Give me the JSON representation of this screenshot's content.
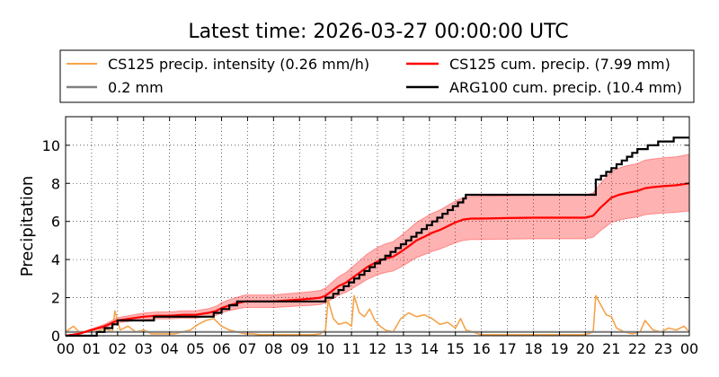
{
  "chart_data": {
    "type": "line",
    "title": "Latest time: 2026-03-27 00:00:00 UTC",
    "ylabel": "Precipitation",
    "xlabel": "",
    "xlim": [
      0,
      24
    ],
    "ylim": [
      0,
      11.5
    ],
    "x_ticks": [
      "00",
      "01",
      "02",
      "03",
      "04",
      "05",
      "06",
      "07",
      "08",
      "09",
      "10",
      "11",
      "12",
      "13",
      "14",
      "15",
      "16",
      "17",
      "18",
      "19",
      "20",
      "21",
      "22",
      "23",
      "00"
    ],
    "y_ticks": [
      0,
      2,
      4,
      6,
      8,
      10
    ],
    "grid": true,
    "legend": {
      "placement": "top",
      "entries": [
        {
          "label": "CS125 precip. intensity (0.26 mm/h)",
          "color": "#f5a34a"
        },
        {
          "label": "CS125 cum. precip. (7.99 mm)",
          "color": "#ff0000"
        },
        {
          "label": "0.2 mm",
          "color": "#808080"
        },
        {
          "label": "ARG100 cum. precip. (10.4 mm)",
          "color": "#000000"
        }
      ]
    },
    "series": [
      {
        "name": "CS125 precip. intensity (0.26 mm/h)",
        "color": "#f5a34a",
        "x": [
          0,
          0.3,
          0.6,
          0.9,
          1.2,
          1.5,
          1.8,
          1.9,
          2.1,
          2.4,
          2.7,
          3.0,
          3.3,
          3.6,
          3.9,
          4.2,
          4.5,
          4.8,
          5.1,
          5.4,
          5.7,
          6.0,
          6.3,
          6.6,
          6.9,
          7.2,
          7.5,
          8,
          8.5,
          9,
          9.5,
          9.8,
          10.0,
          10.1,
          10.3,
          10.5,
          10.8,
          11.0,
          11.1,
          11.3,
          11.5,
          11.7,
          11.9,
          12.1,
          12.3,
          12.6,
          12.9,
          13.2,
          13.5,
          13.8,
          14.1,
          14.4,
          14.7,
          15.0,
          15.2,
          15.4,
          16,
          17,
          18,
          19,
          20,
          20.3,
          20.4,
          20.6,
          20.8,
          21.0,
          21.2,
          21.5,
          21.8,
          22.1,
          22.3,
          22.6,
          22.9,
          23.2,
          23.5,
          23.8,
          24.0
        ],
        "y": [
          0.2,
          0.5,
          0.1,
          0.3,
          0.2,
          0.4,
          0.2,
          1.3,
          0.3,
          0.5,
          0.2,
          0.3,
          0.1,
          0.1,
          0.1,
          0.1,
          0.2,
          0.3,
          0.6,
          0.8,
          0.9,
          0.5,
          0.3,
          0.2,
          0.1,
          0.1,
          0.05,
          0.05,
          0.05,
          0.05,
          0.05,
          0.1,
          0.3,
          1.9,
          0.9,
          0.6,
          0.7,
          0.5,
          2.1,
          1.2,
          1.0,
          1.4,
          0.8,
          0.5,
          0.3,
          0.2,
          0.9,
          1.2,
          1.0,
          1.1,
          0.9,
          0.6,
          0.7,
          0.4,
          0.9,
          0.3,
          0.05,
          0.05,
          0.05,
          0.05,
          0.05,
          0.2,
          2.1,
          1.6,
          1.1,
          1.0,
          0.4,
          0.2,
          0.1,
          0.2,
          0.8,
          0.3,
          0.2,
          0.4,
          0.3,
          0.5,
          0.2
        ]
      },
      {
        "name": "CS125 cum. precip. (7.99 mm)",
        "color": "#ff0000",
        "x": [
          0,
          0.5,
          1,
          1.5,
          2,
          2.5,
          3,
          3.5,
          4,
          4.5,
          5,
          5.5,
          5.8,
          6,
          6.3,
          6.6,
          6.9,
          7.2,
          7.5,
          8,
          8.5,
          9,
          9.5,
          9.8,
          10,
          10.2,
          10.5,
          10.8,
          11,
          11.3,
          11.6,
          12,
          12.3,
          12.6,
          12.9,
          13.2,
          13.5,
          13.8,
          14.1,
          14.4,
          14.7,
          15,
          15.3,
          15.6,
          16,
          17,
          18,
          19,
          20,
          20.3,
          20.6,
          20.8,
          21,
          21.3,
          21.6,
          22,
          22.3,
          22.6,
          23,
          23.5,
          24
        ],
        "y": [
          0.0,
          0.1,
          0.3,
          0.5,
          0.8,
          0.9,
          1.0,
          1.05,
          1.05,
          1.1,
          1.1,
          1.2,
          1.3,
          1.45,
          1.6,
          1.7,
          1.8,
          1.8,
          1.8,
          1.8,
          1.85,
          1.9,
          1.95,
          2.0,
          2.1,
          2.3,
          2.6,
          2.8,
          3.0,
          3.3,
          3.6,
          3.9,
          4.05,
          4.15,
          4.4,
          4.7,
          5.0,
          5.2,
          5.4,
          5.55,
          5.75,
          5.95,
          6.1,
          6.15,
          6.15,
          6.18,
          6.2,
          6.2,
          6.2,
          6.3,
          6.75,
          7.0,
          7.25,
          7.4,
          7.5,
          7.6,
          7.75,
          7.8,
          7.85,
          7.9,
          8.0
        ],
        "band_lower": [
          0.0,
          0.08,
          0.25,
          0.42,
          0.68,
          0.76,
          0.84,
          0.88,
          0.88,
          0.92,
          0.92,
          1.0,
          1.08,
          1.2,
          1.32,
          1.4,
          1.48,
          1.48,
          1.48,
          1.48,
          1.52,
          1.56,
          1.6,
          1.64,
          1.72,
          1.88,
          2.12,
          2.28,
          2.45,
          2.7,
          2.95,
          3.2,
          3.32,
          3.4,
          3.6,
          3.85,
          4.1,
          4.26,
          4.42,
          4.55,
          4.72,
          4.88,
          5.0,
          5.05,
          5.05,
          5.07,
          5.09,
          5.09,
          5.09,
          5.17,
          5.54,
          5.74,
          5.95,
          6.07,
          6.15,
          6.23,
          6.36,
          6.4,
          6.44,
          6.48,
          6.55
        ],
        "band_upper": [
          0.0,
          0.12,
          0.36,
          0.6,
          0.95,
          1.07,
          1.19,
          1.25,
          1.25,
          1.31,
          1.31,
          1.43,
          1.55,
          1.73,
          1.9,
          2.02,
          2.14,
          2.14,
          2.14,
          2.14,
          2.2,
          2.26,
          2.32,
          2.38,
          2.5,
          2.74,
          3.09,
          3.33,
          3.57,
          3.93,
          4.28,
          4.64,
          4.82,
          4.94,
          5.24,
          5.59,
          5.95,
          6.19,
          6.43,
          6.6,
          6.84,
          7.08,
          7.26,
          7.32,
          7.32,
          7.35,
          7.38,
          7.38,
          7.38,
          7.5,
          8.03,
          8.33,
          8.63,
          8.81,
          8.93,
          9.04,
          9.22,
          9.28,
          9.34,
          9.4,
          9.52
        ]
      },
      {
        "name": "0.2 mm",
        "color": "#808080",
        "x": [
          0,
          24
        ],
        "y": [
          0.2,
          0.2
        ]
      },
      {
        "name": "ARG100 cum. precip. (10.4 mm)",
        "color": "#000000",
        "step": true,
        "x": [
          0,
          1.2,
          1.5,
          1.8,
          2.0,
          2.2,
          2.6,
          3.0,
          3.4,
          4.3,
          5.3,
          5.7,
          6.0,
          6.3,
          6.6,
          7.0,
          9.5,
          10.0,
          10.3,
          10.5,
          10.7,
          10.9,
          11.1,
          11.3,
          11.5,
          11.7,
          11.9,
          12.1,
          12.3,
          12.5,
          12.7,
          12.9,
          13.1,
          13.3,
          13.5,
          13.7,
          13.9,
          14.1,
          14.3,
          14.5,
          14.7,
          14.9,
          15.1,
          15.3,
          15.4,
          20.4,
          20.6,
          20.8,
          21.0,
          21.2,
          21.4,
          21.6,
          21.8,
          22.0,
          22.2,
          22.4,
          22.6,
          22.8,
          23.0,
          23.2,
          23.4,
          24.0
        ],
        "y": [
          0.0,
          0.2,
          0.4,
          0.6,
          0.8,
          0.8,
          0.8,
          0.8,
          1.0,
          1.0,
          1.0,
          1.2,
          1.4,
          1.6,
          1.8,
          1.8,
          1.8,
          2.0,
          2.2,
          2.4,
          2.6,
          2.8,
          3.0,
          3.2,
          3.4,
          3.6,
          3.8,
          4.0,
          4.2,
          4.4,
          4.6,
          4.8,
          5.0,
          5.2,
          5.4,
          5.6,
          5.8,
          6.0,
          6.2,
          6.4,
          6.6,
          6.8,
          7.0,
          7.2,
          7.4,
          8.2,
          8.4,
          8.6,
          8.8,
          9.0,
          9.2,
          9.4,
          9.6,
          9.8,
          9.8,
          10.0,
          10.0,
          10.2,
          10.2,
          10.2,
          10.4,
          10.4
        ]
      }
    ]
  }
}
